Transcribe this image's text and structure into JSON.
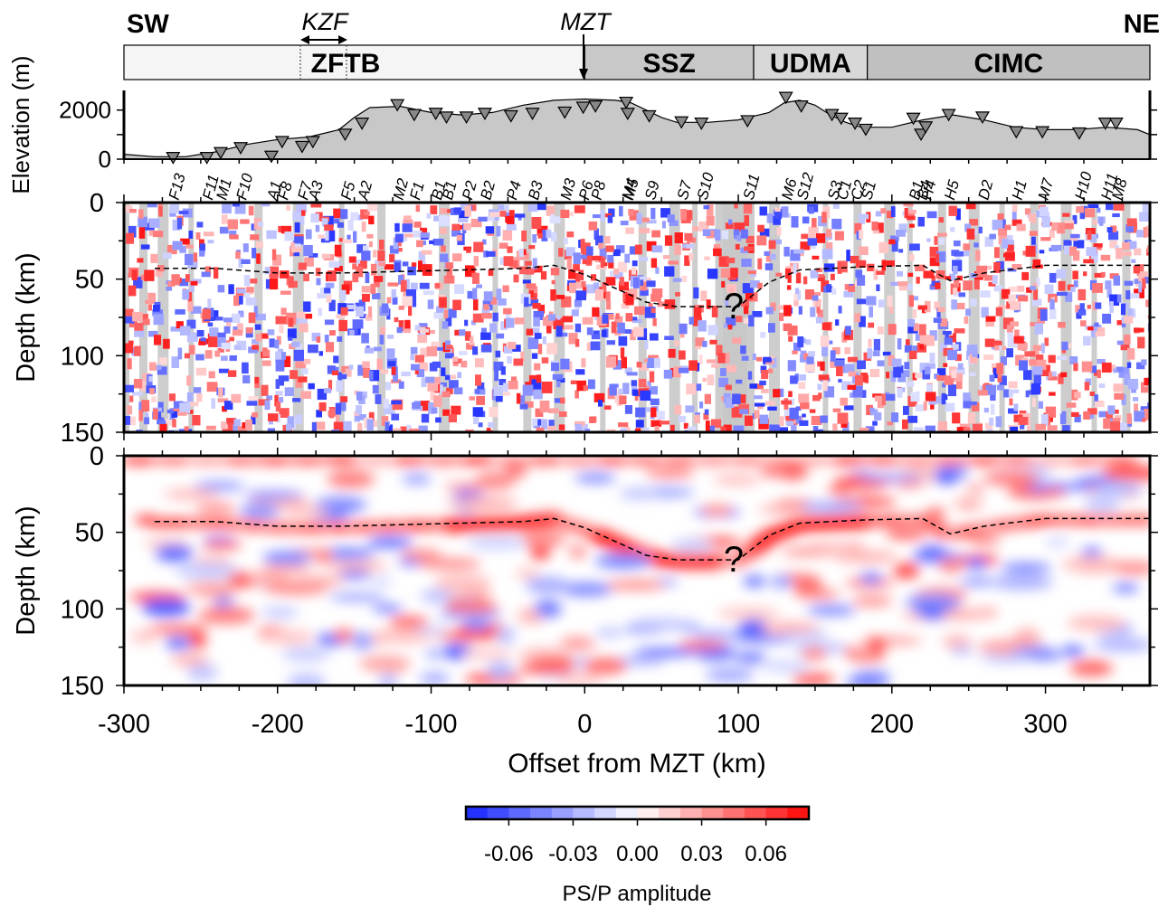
{
  "labels": {
    "sw": "SW",
    "ne": "NE",
    "kzf": "KZF",
    "mzt": "MZT",
    "question": "?",
    "xlabel": "Offset from MZT (km)",
    "elev_ylabel": "Elevation (m)",
    "depth_ylabel": "Depth (km)",
    "colorbar_label": "PS/P amplitude"
  },
  "zones": [
    {
      "name": "ZFTB",
      "x0": -300,
      "x1": 0,
      "fill": "#f5f5f5"
    },
    {
      "name": "SSZ",
      "x0": 0,
      "x1": 110,
      "fill": "#c8c8c8"
    },
    {
      "name": "UDMA",
      "x0": 110,
      "x1": 184,
      "fill": "#d8d8d8"
    },
    {
      "name": "CIMC",
      "x0": 184,
      "x1": 368,
      "fill": "#c0c0c0"
    }
  ],
  "colors": {
    "negative": "#2b3bff",
    "positive": "#ff1a1a",
    "background_gray": "#c8c8c8",
    "zone_light": "#f5f5f5"
  },
  "chart_data": [
    {
      "type": "area",
      "title": "",
      "ylabel": "Elevation (m)",
      "xlim": [
        -300,
        368
      ],
      "ylim": [
        0,
        2800
      ],
      "yticks": [
        "0",
        "2000"
      ],
      "topography": {
        "x": [
          -300,
          -280,
          -260,
          -240,
          -220,
          -200,
          -180,
          -160,
          -150,
          -140,
          -120,
          -100,
          -80,
          -60,
          -40,
          -20,
          0,
          20,
          30,
          40,
          50,
          60,
          80,
          100,
          120,
          130,
          140,
          150,
          160,
          170,
          180,
          190,
          200,
          220,
          240,
          260,
          280,
          300,
          320,
          340,
          360,
          368
        ],
        "y": [
          200,
          100,
          100,
          300,
          600,
          800,
          900,
          1200,
          1700,
          2100,
          2150,
          1900,
          1800,
          1900,
          2200,
          2400,
          2450,
          2400,
          2300,
          2000,
          1700,
          1500,
          1500,
          1600,
          1900,
          2300,
          2400,
          2200,
          1800,
          1500,
          1300,
          1300,
          1300,
          1600,
          1800,
          1600,
          1300,
          1200,
          1200,
          1300,
          1200,
          1000
        ]
      },
      "stations": [
        {
          "name": "F13",
          "x": -268,
          "elev": 50
        },
        {
          "name": "F11",
          "x": -246,
          "elev": 50
        },
        {
          "name": "M1",
          "x": -237,
          "elev": 250
        },
        {
          "name": "F10",
          "x": -224,
          "elev": 450
        },
        {
          "name": "A1",
          "x": -204,
          "elev": 100
        },
        {
          "name": "F8",
          "x": -197,
          "elev": 700
        },
        {
          "name": "F7",
          "x": -184,
          "elev": 500
        },
        {
          "name": "A3",
          "x": -177,
          "elev": 700
        },
        {
          "name": "F5",
          "x": -156,
          "elev": 1000
        },
        {
          "name": "A2",
          "x": -145,
          "elev": 1450
        },
        {
          "name": "M2",
          "x": -122,
          "elev": 2200
        },
        {
          "name": "F1",
          "x": -111,
          "elev": 1800
        },
        {
          "name": "B1",
          "x": -97,
          "elev": 1850
        },
        {
          "name": "B1",
          "x": -90,
          "elev": 1700
        },
        {
          "name": "P2",
          "x": -77,
          "elev": 1700
        },
        {
          "name": "B2",
          "x": -65,
          "elev": 1850
        },
        {
          "name": "P4",
          "x": -48,
          "elev": 1750
        },
        {
          "name": "B3",
          "x": -34,
          "elev": 1850
        },
        {
          "name": "M3",
          "x": -13,
          "elev": 1900
        },
        {
          "name": "P6",
          "x": -1,
          "elev": 2100
        },
        {
          "name": "P8",
          "x": 7,
          "elev": 2150
        },
        {
          "name": "M4",
          "x": 27,
          "elev": 2300
        },
        {
          "name": "M5",
          "x": 28,
          "elev": 1850
        },
        {
          "name": "S9",
          "x": 42,
          "elev": 1750
        },
        {
          "name": "S7",
          "x": 63,
          "elev": 1500
        },
        {
          "name": "S10",
          "x": 76,
          "elev": 1450
        },
        {
          "name": "S11",
          "x": 106,
          "elev": 1550
        },
        {
          "name": "M6",
          "x": 131,
          "elev": 2500
        },
        {
          "name": "S12",
          "x": 141,
          "elev": 2150
        },
        {
          "name": "S3",
          "x": 161,
          "elev": 1800
        },
        {
          "name": "C1",
          "x": 167,
          "elev": 1650
        },
        {
          "name": "C2",
          "x": 176,
          "elev": 1450
        },
        {
          "name": "S1",
          "x": 183,
          "elev": 1200
        },
        {
          "name": "B1",
          "x": 214,
          "elev": 1650
        },
        {
          "name": "B4",
          "x": 219,
          "elev": 1000
        },
        {
          "name": "H4",
          "x": 222,
          "elev": 1300
        },
        {
          "name": "H5",
          "x": 237,
          "elev": 1800
        },
        {
          "name": "D2",
          "x": 259,
          "elev": 1700
        },
        {
          "name": "H1",
          "x": 281,
          "elev": 1100
        },
        {
          "name": "M7",
          "x": 298,
          "elev": 1100
        },
        {
          "name": "H10",
          "x": 322,
          "elev": 1050
        },
        {
          "name": "H11",
          "x": 339,
          "elev": 1450
        },
        {
          "name": "M8",
          "x": 346,
          "elev": 1450
        }
      ]
    },
    {
      "type": "heatmap",
      "title": "",
      "xlabel": "",
      "ylabel": "Depth (km)",
      "xlim": [
        -300,
        368
      ],
      "ylim": [
        150,
        0
      ],
      "yticks": [
        "0",
        "50",
        "100",
        "150"
      ],
      "moho_dashed": {
        "x": [
          -280,
          -240,
          -200,
          -160,
          -120,
          -80,
          -40,
          -20,
          0,
          20,
          40,
          60,
          80,
          100,
          120,
          140,
          180,
          220,
          238,
          260,
          300,
          340,
          368
        ],
        "depth": [
          43,
          43,
          46,
          46,
          45,
          44,
          43,
          41,
          47,
          56,
          65,
          68,
          68,
          68,
          52,
          44,
          42,
          41,
          51,
          46,
          41,
          41,
          41
        ]
      },
      "question_mark": {
        "x": 97,
        "depth": 66
      }
    },
    {
      "type": "heatmap",
      "title": "",
      "xlabel": "Offset from MZT (km)",
      "ylabel": "Depth (km)",
      "xlim": [
        -300,
        368
      ],
      "ylim": [
        150,
        0
      ],
      "xticks": [
        "-300",
        "-200",
        "-100",
        "0",
        "100",
        "200",
        "300"
      ],
      "yticks": [
        "0",
        "50",
        "100",
        "150"
      ],
      "moho_dashed": {
        "x": [
          -280,
          -240,
          -200,
          -160,
          -120,
          -80,
          -40,
          -20,
          0,
          20,
          40,
          60,
          80,
          100,
          120,
          140,
          180,
          220,
          238,
          260,
          300,
          340,
          368
        ],
        "depth": [
          43,
          43,
          46,
          46,
          45,
          44,
          43,
          41,
          47,
          56,
          65,
          68,
          68,
          68,
          52,
          44,
          42,
          41,
          51,
          46,
          41,
          41,
          41
        ]
      },
      "question_mark": {
        "x": 97,
        "depth": 66
      }
    },
    {
      "type": "heatmap",
      "title": "",
      "xlabel": "PS/P amplitude",
      "colorbar": {
        "range": [
          -0.08,
          0.08
        ],
        "ticks": [
          "-0.06",
          "-0.03",
          "0.00",
          "0.03",
          "0.06"
        ]
      }
    }
  ]
}
